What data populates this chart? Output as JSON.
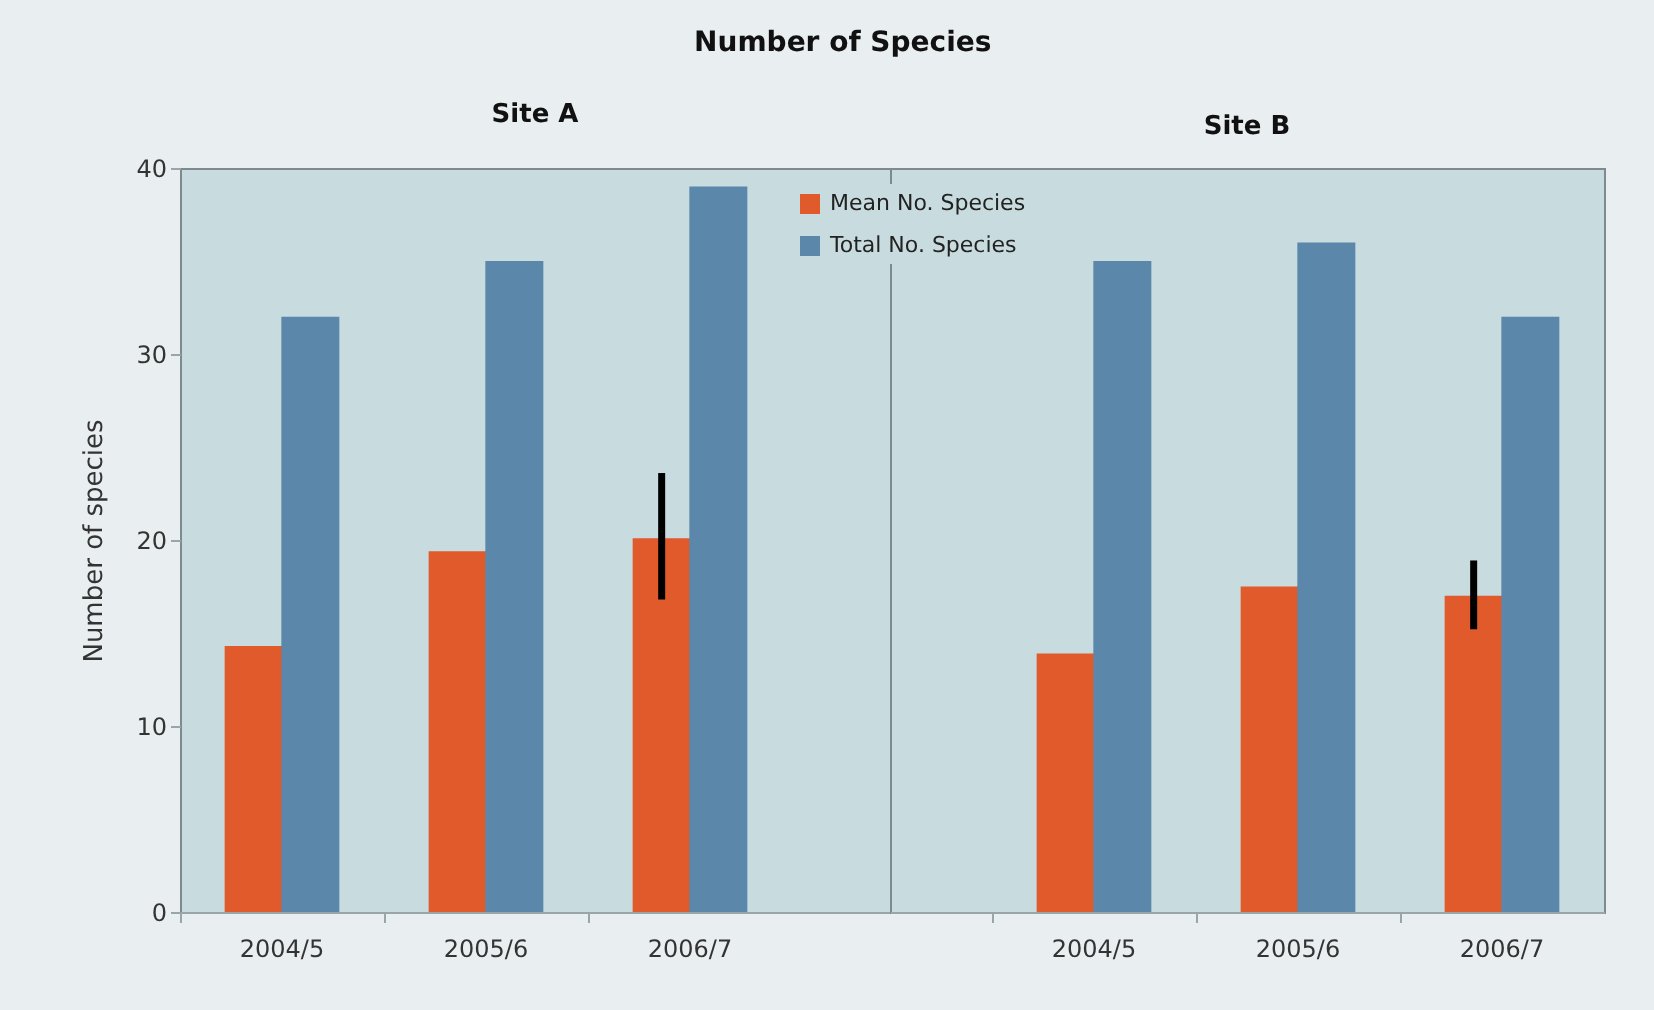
{
  "chart_data": [
    {
      "type": "bar",
      "title": "Site A",
      "annotations": [
        "Number of Species"
      ],
      "ylabel": "Number of species",
      "categories": [
        "2004/5",
        "2005/6",
        "2006/7"
      ],
      "ylim": [
        0,
        40
      ],
      "yticks": [
        0,
        10,
        20,
        30,
        40
      ],
      "series": [
        {
          "color": "#e05a2b",
          "values": [
            14.3,
            19.4,
            20.1
          ],
          "errors": [
            null,
            null,
            [
              16.8,
              23.6
            ]
          ]
        },
        {
          "color": "#5a87aa",
          "values": [
            32,
            35,
            39
          ]
        }
      ]
    },
    {
      "type": "bar",
      "title": "Site B",
      "categories": [
        "2004/5",
        "2005/6",
        "2006/7"
      ],
      "ylim": [
        0,
        40
      ],
      "tick_labels": "x",
      "legend": "top left",
      "series": [
        {
          "name": "Mean No. Species",
          "color": "#e05a2b",
          "values": [
            13.9,
            17.5,
            17.0
          ],
          "errors": [
            null,
            null,
            [
              15.2,
              18.9
            ]
          ]
        },
        {
          "name": "Total No. Species",
          "color": "#5a87aa",
          "values": [
            35,
            36,
            32
          ]
        }
      ]
    }
  ]
}
